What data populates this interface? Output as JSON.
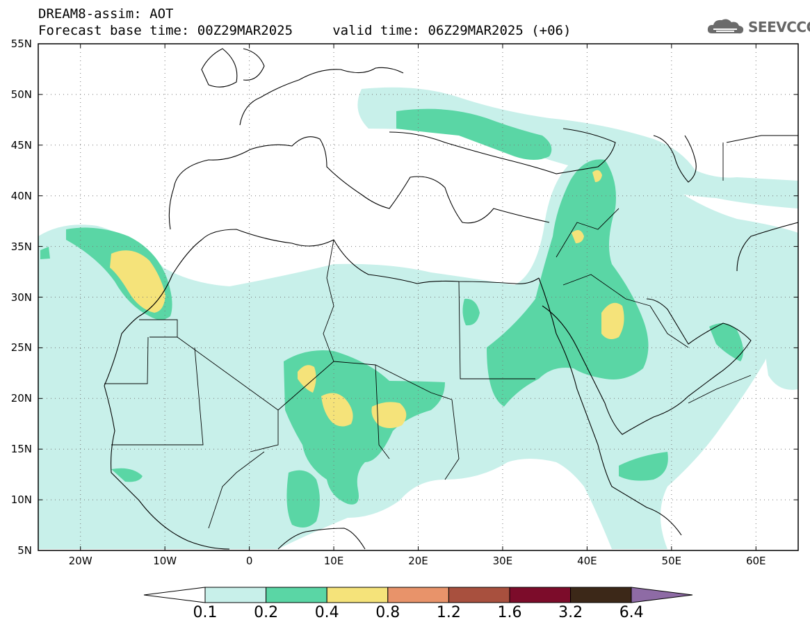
{
  "header": {
    "line1": "DREAM8-assim: AOT",
    "line2": "Forecast base time: 00Z29MAR2025     valid time: 06Z29MAR2025 (+06)"
  },
  "logo": {
    "text": "SEEVCCC",
    "icon": "cloud-icon"
  },
  "map": {
    "lat_labels": [
      "55N",
      "50N",
      "45N",
      "40N",
      "35N",
      "30N",
      "25N",
      "20N",
      "15N",
      "10N",
      "5N"
    ],
    "lon_labels": [
      "20W",
      "10W",
      "0",
      "10E",
      "20E",
      "30E",
      "40E",
      "50E",
      "60E"
    ],
    "lon_range": [
      -25,
      65
    ],
    "lat_range": [
      5,
      55
    ],
    "grid": "dotted"
  },
  "colorbar": {
    "levels": [
      "0.1",
      "0.2",
      "0.4",
      "0.8",
      "1.2",
      "1.6",
      "3.2",
      "6.4"
    ],
    "colors": [
      "#ffffff",
      "#c8f0ea",
      "#5ad6a5",
      "#f5e37a",
      "#e8936a",
      "#a8503e",
      "#7c0c2a",
      "#3c2818",
      "#8e6ba5"
    ]
  }
}
